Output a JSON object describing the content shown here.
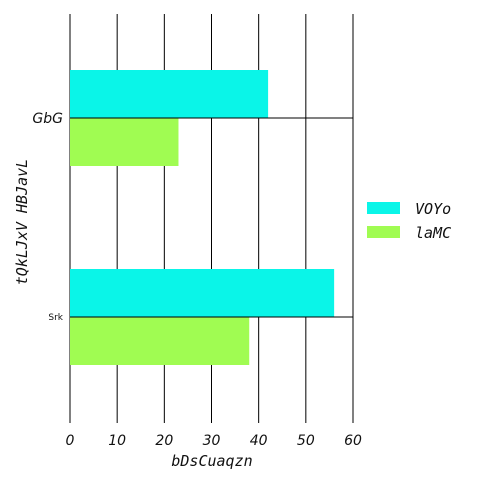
{
  "chart_data": {
    "type": "bar",
    "orientation": "horizontal",
    "categories": [
      "GbG",
      "Srk"
    ],
    "series": [
      {
        "name": "VOYo",
        "color": "#0af5e8",
        "values": [
          42,
          56
        ]
      },
      {
        "name": "laMC",
        "color": "#a0fc52",
        "values": [
          23,
          38
        ]
      }
    ],
    "xlabel": "bDsCuaqzn",
    "ylabel": "tQkLJxV HBJavL",
    "xlim": [
      0,
      60
    ],
    "xticks": [
      "0",
      "10",
      "20",
      "30",
      "40",
      "50",
      "60"
    ],
    "grid": "vertical",
    "legend_position": "right"
  }
}
